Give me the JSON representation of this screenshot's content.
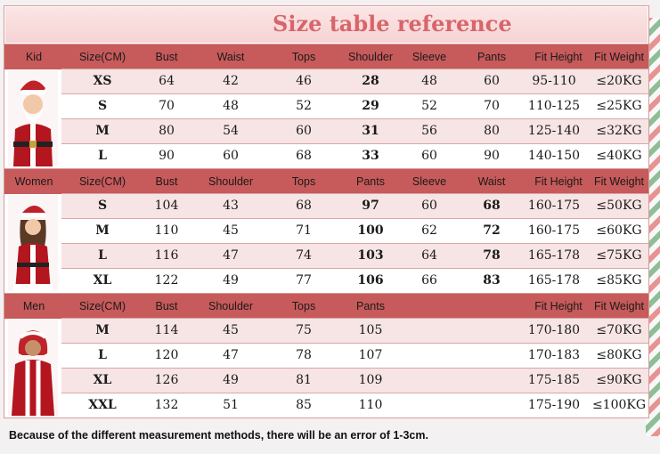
{
  "title": "Size table reference",
  "colors": {
    "header": "#c75a5a",
    "title": "#d8656b",
    "row_alt": "#f7e4e4"
  },
  "kid": {
    "headers": [
      "Kid",
      "Size(CM)",
      "Bust",
      "Waist",
      "Tops",
      "Shoulder",
      "Sleeve",
      "Pants",
      "Fit Height",
      "Fit Weight"
    ],
    "rows": [
      [
        "XS",
        "64",
        "42",
        "46",
        "28",
        "48",
        "60",
        "95-110",
        "≤20KG"
      ],
      [
        "S",
        "70",
        "48",
        "52",
        "29",
        "52",
        "70",
        "110-125",
        "≤25KG"
      ],
      [
        "M",
        "80",
        "54",
        "60",
        "31",
        "56",
        "80",
        "125-140",
        "≤32KG"
      ],
      [
        "L",
        "90",
        "60",
        "68",
        "33",
        "60",
        "90",
        "140-150",
        "≤40KG"
      ]
    ]
  },
  "women": {
    "headers": [
      "Women",
      "Size(CM)",
      "Bust",
      "Shoulder",
      "Tops",
      "Pants",
      "Sleeve",
      "Waist",
      "Fit Height",
      "Fit Weight"
    ],
    "rows": [
      [
        "S",
        "104",
        "43",
        "68",
        "97",
        "60",
        "68",
        "160-175",
        "≤50KG"
      ],
      [
        "M",
        "110",
        "45",
        "71",
        "100",
        "62",
        "72",
        "160-175",
        "≤60KG"
      ],
      [
        "L",
        "116",
        "47",
        "74",
        "103",
        "64",
        "78",
        "165-178",
        "≤75KG"
      ],
      [
        "XL",
        "122",
        "49",
        "77",
        "106",
        "66",
        "83",
        "165-178",
        "≤85KG"
      ]
    ]
  },
  "men": {
    "headers": [
      "Men",
      "Size(CM)",
      "Bust",
      "Shoulder",
      "Tops",
      "Pants",
      "",
      "",
      "Fit Height",
      "Fit Weight"
    ],
    "rows": [
      [
        "M",
        "114",
        "45",
        "75",
        "105",
        "",
        "",
        "170-180",
        "≤70KG"
      ],
      [
        "L",
        "120",
        "47",
        "78",
        "107",
        "",
        "",
        "170-183",
        "≤80KG"
      ],
      [
        "XL",
        "126",
        "49",
        "81",
        "109",
        "",
        "",
        "175-185",
        "≤90KG"
      ],
      [
        "XXL",
        "132",
        "51",
        "85",
        "110",
        "",
        "",
        "175-190",
        "≤100KG"
      ]
    ]
  },
  "note": "Because of the different measurement methods, there will be an error of 1-3cm."
}
